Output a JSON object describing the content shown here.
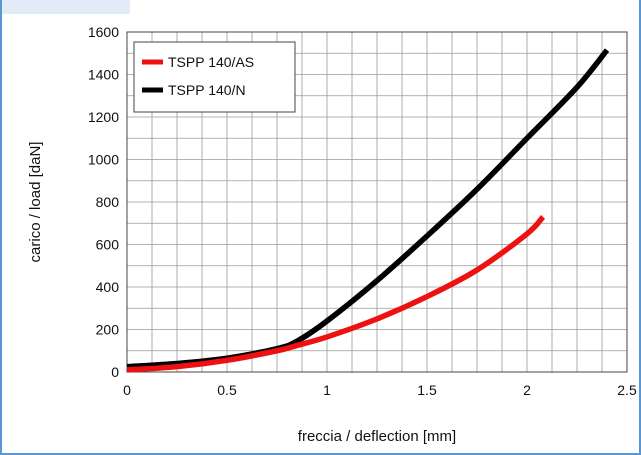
{
  "chart_data": {
    "type": "line",
    "title": "",
    "xlabel": "freccia / deflection [mm]",
    "ylabel": "carico / load [daN]",
    "xlim": [
      0,
      2.5
    ],
    "ylim": [
      0,
      1600
    ],
    "x_ticks": [
      0,
      0.5,
      1,
      1.5,
      2,
      2.5
    ],
    "x_tick_labels": [
      "0",
      "0.5",
      "1",
      "1.5",
      "2",
      "2.5"
    ],
    "y_ticks": [
      0,
      200,
      400,
      600,
      800,
      1000,
      1200,
      1400,
      1600
    ],
    "y_tick_labels": [
      "0",
      "200",
      "400",
      "600",
      "800",
      "1000",
      "1200",
      "1400",
      "1600"
    ],
    "x_minor_step": 0.125,
    "y_minor_step": 100,
    "grid": true,
    "legend_position": "top-left",
    "series": [
      {
        "name": "TSPP 140/AS",
        "color": "#ee1111",
        "points": [
          [
            0,
            10
          ],
          [
            0.25,
            25
          ],
          [
            0.5,
            55
          ],
          [
            0.75,
            100
          ],
          [
            0.85,
            125
          ],
          [
            1.0,
            165
          ],
          [
            1.25,
            250
          ],
          [
            1.5,
            355
          ],
          [
            1.75,
            480
          ],
          [
            2.0,
            650
          ],
          [
            2.08,
            730
          ]
        ]
      },
      {
        "name": "TSPP 140/N",
        "color": "#000000",
        "points": [
          [
            0,
            25
          ],
          [
            0.25,
            40
          ],
          [
            0.5,
            65
          ],
          [
            0.75,
            110
          ],
          [
            0.85,
            145
          ],
          [
            1.0,
            240
          ],
          [
            1.25,
            430
          ],
          [
            1.5,
            640
          ],
          [
            1.75,
            860
          ],
          [
            2.0,
            1100
          ],
          [
            2.25,
            1340
          ],
          [
            2.4,
            1515
          ]
        ]
      }
    ]
  }
}
